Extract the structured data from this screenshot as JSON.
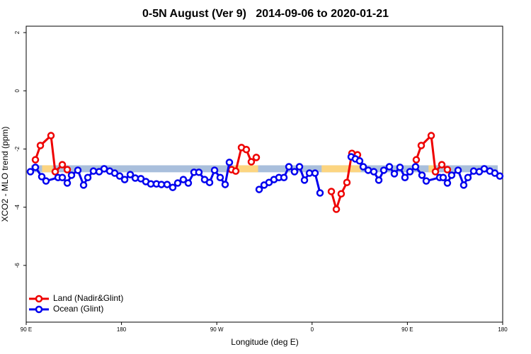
{
  "chart_data": {
    "type": "line",
    "title": "0-5N August (Ver 9)   2014-09-06 to 2020-01-21",
    "x_label": "Longitude (deg E)",
    "y_label": "XCO2 - MLO trend (ppm)",
    "xlim": [
      90,
      540
    ],
    "xticks": [
      {
        "value": 90,
        "label": "90 E"
      },
      180,
      {
        "value": 270,
        "label": "90 W"
      },
      {
        "value": 360,
        "label": "0"
      },
      {
        "value": 450,
        "label": "90 E"
      },
      {
        "value": 540,
        "label": "180"
      }
    ],
    "ylim": [
      -7.95,
      2.22
    ],
    "yticks": [
      2,
      0,
      -2,
      -4,
      -6
    ],
    "legend": "bottom-left",
    "band": {
      "ylim": [
        -2.8,
        -2.56
      ],
      "color": "#a9bfdc"
    },
    "highlights": {
      "color": "#fcd581",
      "x": [
        [
          105,
          115
        ],
        [
          286,
          309
        ],
        [
          369,
          406
        ],
        [
          470,
          476
        ]
      ]
    },
    "series": [
      {
        "name": "Land (Nadir&Glint)",
        "color": "#ee0000",
        "x": [
          98.7,
          103.4,
          113.4,
          117.4,
          124.1,
          128.8,
          null,
          283.9,
          287.9,
          293.3,
          297.9,
          302.6,
          307.3,
          null,
          378.2,
          382.9,
          387.5,
          392.9,
          397.6,
          402.9,
          null,
          458.4,
          463.1,
          472.5,
          476.5,
          482.5,
          487.8
        ],
        "values": [
          -2.37,
          -1.88,
          -1.54,
          -2.78,
          -2.54,
          -2.71,
          null,
          -2.71,
          -2.76,
          -1.95,
          -2.02,
          -2.44,
          -2.29,
          null,
          -3.46,
          -4.07,
          -3.54,
          -3.15,
          -2.15,
          -2.2,
          null,
          -2.37,
          -1.88,
          -1.54,
          -2.78,
          -2.54,
          -2.71
        ]
      },
      {
        "name": "Ocean (Glint)",
        "color": "#0000ee",
        "x": [
          94.0,
          98.7,
          104.7,
          108.7,
          120.1,
          124.1,
          128.8,
          132.8,
          138.8,
          144.2,
          148.2,
          153.5,
          158.9,
          163.6,
          168.9,
          173.6,
          178.3,
          183.0,
          188.3,
          193.0,
          198.3,
          203.0,
          207.7,
          213.0,
          217.7,
          223.1,
          228.4,
          233.1,
          238.4,
          243.1,
          248.5,
          253.1,
          258.5,
          263.2,
          267.9,
          273.2,
          277.9,
          281.9,
          null,
          310.0,
          314.7,
          319.3,
          324.0,
          328.7,
          333.4,
          338.1,
          343.4,
          348.1,
          352.8,
          357.5,
          362.8,
          367.5,
          null,
          396.9,
          400.9,
          404.9,
          408.3,
          413.0,
          418.3,
          423.0,
          427.7,
          433.0,
          437.7,
          443.0,
          447.7,
          452.4,
          457.7,
          463.8,
          467.8,
          480.5,
          483.8,
          487.8,
          491.8,
          497.9,
          503.2,
          507.2,
          512.6,
          517.9,
          522.6,
          527.9,
          532.6,
          537.3
        ],
        "values": [
          -2.78,
          -2.63,
          -2.95,
          -3.1,
          -2.98,
          -2.98,
          -3.17,
          -2.9,
          -2.73,
          -3.24,
          -2.98,
          -2.76,
          -2.78,
          -2.68,
          -2.76,
          -2.83,
          -2.93,
          -3.05,
          -2.88,
          -3.0,
          -3.02,
          -3.12,
          -3.2,
          -3.2,
          -3.22,
          -3.22,
          -3.32,
          -3.17,
          -3.05,
          -3.17,
          -2.8,
          -2.8,
          -3.05,
          -3.15,
          -2.73,
          -2.98,
          -3.22,
          -2.46,
          null,
          -3.39,
          -3.24,
          -3.15,
          -3.05,
          -2.98,
          -2.98,
          -2.61,
          -2.78,
          -2.61,
          -3.07,
          -2.83,
          -2.83,
          -3.51,
          null,
          -2.27,
          -2.34,
          -2.41,
          -2.61,
          -2.73,
          -2.78,
          -3.07,
          -2.73,
          -2.61,
          -2.85,
          -2.63,
          -2.98,
          -2.78,
          -2.61,
          -2.9,
          -3.1,
          -2.98,
          -2.98,
          -3.17,
          -2.9,
          -2.73,
          -3.24,
          -2.98,
          -2.76,
          -2.78,
          -2.68,
          -2.76,
          -2.83,
          -2.93
        ]
      }
    ]
  }
}
